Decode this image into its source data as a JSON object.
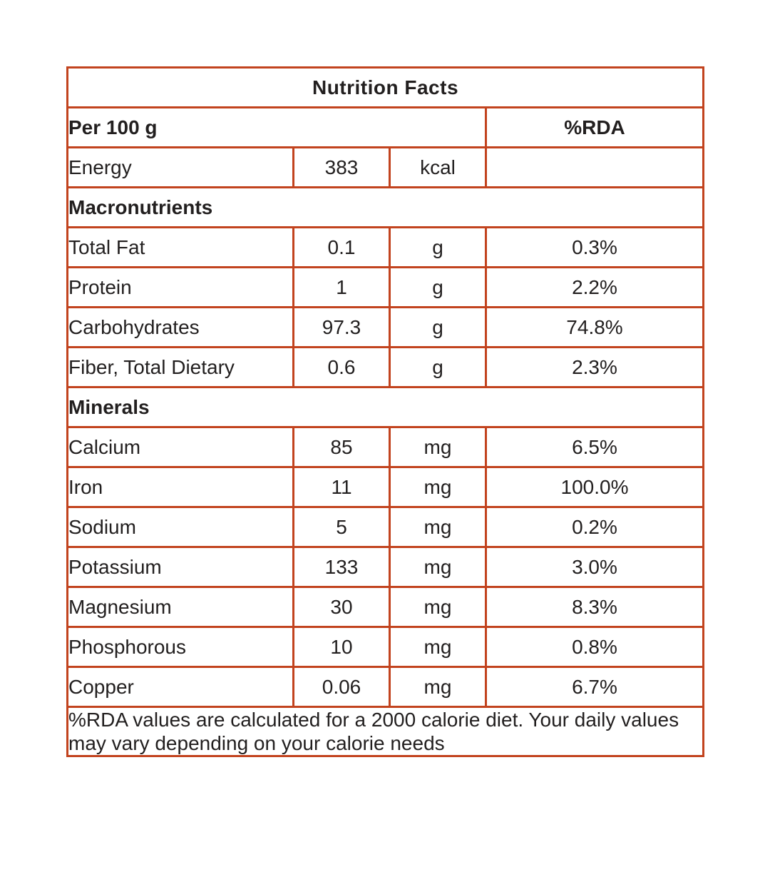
{
  "colors": {
    "border": "#c2431e",
    "text": "#221f1f",
    "background": "#ffffff"
  },
  "title": "Nutrition Facts",
  "header": {
    "serving": "Per 100 g",
    "rda": "%RDA"
  },
  "rows": [
    {
      "type": "data",
      "name": "Energy",
      "value": "383",
      "unit": "kcal",
      "rda": ""
    },
    {
      "type": "section",
      "label": "Macronutrients"
    },
    {
      "type": "data",
      "name": "Total Fat",
      "value": "0.1",
      "unit": "g",
      "rda": "0.3%"
    },
    {
      "type": "data",
      "name": "Protein",
      "value": "1",
      "unit": "g",
      "rda": "2.2%"
    },
    {
      "type": "data",
      "name": "Carbohydrates",
      "value": "97.3",
      "unit": "g",
      "rda": "74.8%"
    },
    {
      "type": "data",
      "name": "Fiber, Total Dietary",
      "value": "0.6",
      "unit": "g",
      "rda": "2.3%"
    },
    {
      "type": "section",
      "label": "Minerals"
    },
    {
      "type": "data",
      "name": "Calcium",
      "value": "85",
      "unit": "mg",
      "rda": "6.5%"
    },
    {
      "type": "data",
      "name": "Iron",
      "value": "11",
      "unit": "mg",
      "rda": "100.0%"
    },
    {
      "type": "data",
      "name": "Sodium",
      "value": "5",
      "unit": "mg",
      "rda": "0.2%"
    },
    {
      "type": "data",
      "name": "Potassium",
      "value": "133",
      "unit": "mg",
      "rda": "3.0%"
    },
    {
      "type": "data",
      "name": "Magnesium",
      "value": "30",
      "unit": "mg",
      "rda": "8.3%"
    },
    {
      "type": "data",
      "name": "Phosphorous",
      "value": "10",
      "unit": "mg",
      "rda": "0.8%"
    },
    {
      "type": "data",
      "name": "Copper",
      "value": "0.06",
      "unit": "mg",
      "rda": "6.7%"
    }
  ],
  "footnote": "%RDA values are calculated for a 2000 calorie diet. Your daily values may vary depending on your calorie needs"
}
